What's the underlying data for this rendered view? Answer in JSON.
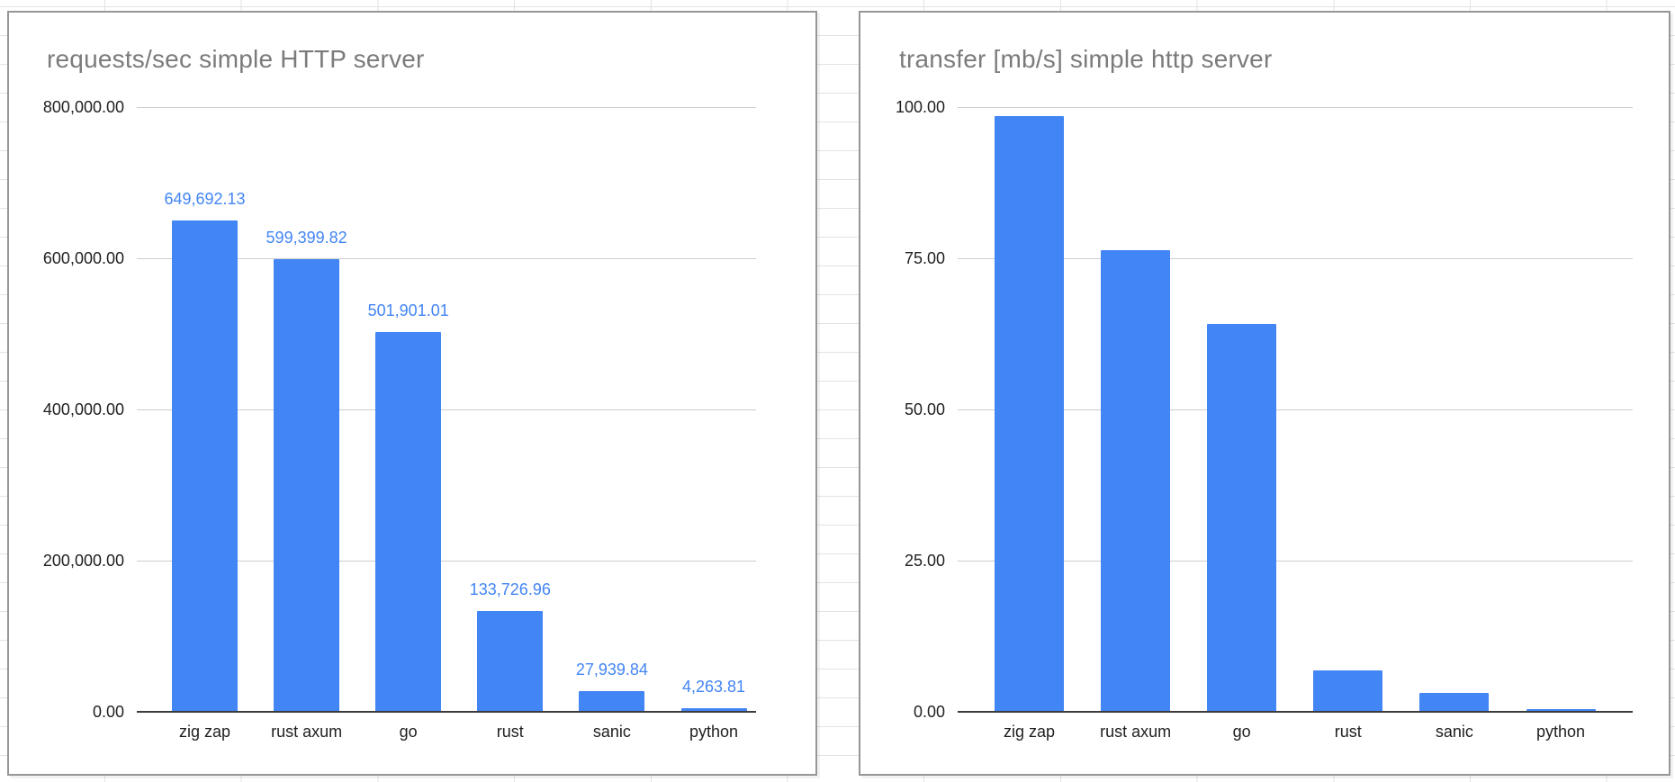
{
  "app": {
    "context": "spreadsheet-with-embedded-charts"
  },
  "colors": {
    "bar": "#4285f4",
    "value_label": "#4285f4",
    "title": "#7b7b7b",
    "tick_label": "#1f1f1f",
    "gridline": "#cdcdcd",
    "axis_line": "#3c3c3c",
    "card_border": "#969696",
    "sheet_line": "#e3e3e3"
  },
  "chart_data": [
    {
      "type": "bar",
      "title": "requests/sec simple HTTP server",
      "categories": [
        "zig zap",
        "rust axum",
        "go",
        "rust",
        "sanic",
        "python"
      ],
      "values": [
        649692.13,
        599399.82,
        501901.01,
        133726.96,
        27939.84,
        4263.81
      ],
      "value_labels": [
        "649,692.13",
        "599,399.82",
        "501,901.01",
        "133,726.96",
        "27,939.84",
        "4,263.81"
      ],
      "show_value_labels": true,
      "y_ticks": [
        "800,000.00",
        "600,000.00",
        "400,000.00",
        "200,000.00",
        "0.00"
      ],
      "ylim": [
        0,
        800000
      ],
      "xlabel": "",
      "ylabel": "",
      "grid": true,
      "legend": "none"
    },
    {
      "type": "bar",
      "title": "transfer [mb/s] simple http server",
      "categories": [
        "zig zap",
        "rust axum",
        "go",
        "rust",
        "sanic",
        "python"
      ],
      "values": [
        98.5,
        76.3,
        64.1,
        6.9,
        3.1,
        0.5
      ],
      "value_labels": [],
      "show_value_labels": false,
      "y_ticks": [
        "100.00",
        "75.00",
        "50.00",
        "25.00",
        "0.00"
      ],
      "ylim": [
        0,
        100
      ],
      "xlabel": "",
      "ylabel": "",
      "grid": true,
      "legend": "none"
    }
  ]
}
